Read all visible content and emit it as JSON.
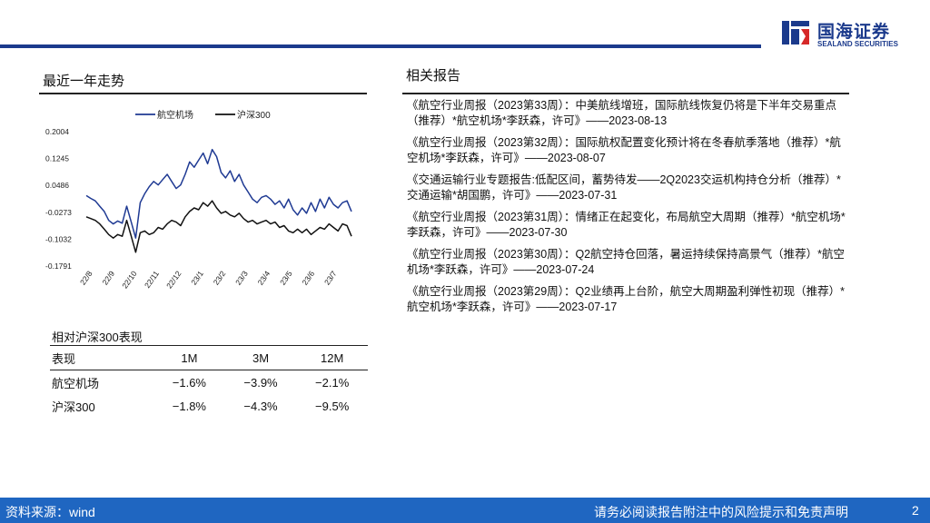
{
  "brand": {
    "name_cn": "国海证券",
    "name_en": "SEALAND SECURITIES"
  },
  "left": {
    "chart_title": "最近一年走势"
  },
  "right": {
    "section_title": "相关报告",
    "reports": [
      "《航空行业周报（2023第33周）：中美航线增班，国际航线恢复仍将是下半年交易重点（推荐）*航空机场*李跃森，许可》——2023-08-13",
      "《航空行业周报（2023第32周）：国际航权配置变化预计将在冬春航季落地（推荐）*航空机场*李跃森，许可》——2023-08-07",
      "《交通运输行业专题报告:低配区间，蓄势待发——2Q2023交运机构持仓分析（推荐）*交通运输*胡国鹏，许可》——2023-07-31",
      "《航空行业周报（2023第31周）：情绪正在起变化，布局航空大周期（推荐）*航空机场*李跃森，许可》——2023-07-30",
      "《航空行业周报（2023第30周）：Q2航空持仓回落，暑运持续保持高景气（推荐）*航空机场*李跃森，许可》——2023-07-24",
      "《航空行业周报（2023第29周）：Q2业绩再上台阶，航空大周期盈利弹性初现（推荐）*航空机场*李跃森，许可》——2023-07-17"
    ]
  },
  "perf_table": {
    "title": "相对沪深300表现",
    "headers": [
      "表现",
      "1M",
      "3M",
      "12M"
    ],
    "rows": [
      [
        "航空机场",
        "−1.6%",
        "−3.9%",
        "−2.1%"
      ],
      [
        "沪深300",
        "−1.8%",
        "−4.3%",
        "−9.5%"
      ]
    ]
  },
  "footer": {
    "source": "资料来源：wind",
    "disclaimer": "请务必阅读报告附注中的风险提示和免责声明",
    "page": "2"
  },
  "chart_data": {
    "type": "line",
    "x_labels": [
      "22/8",
      "22/9",
      "22/10",
      "22/11",
      "22/12",
      "23/1",
      "23/2",
      "23/3",
      "23/4",
      "23/5",
      "23/6",
      "23/7"
    ],
    "yticks": [
      "0.2004",
      "0.1245",
      "0.0486",
      "-0.0273",
      "-0.1032",
      "-0.1791"
    ],
    "ylim": [
      -0.1791,
      0.2004
    ],
    "legend_position": "top",
    "grid": false,
    "series": [
      {
        "name": "航空机场",
        "color": "#1f3a93",
        "values": [
          0.02,
          0.012,
          0.005,
          -0.01,
          -0.025,
          -0.05,
          -0.06,
          -0.052,
          -0.058,
          -0.01,
          -0.055,
          -0.1,
          0.0,
          0.025,
          0.045,
          0.06,
          0.05,
          0.065,
          0.08,
          0.06,
          0.04,
          0.05,
          0.08,
          0.115,
          0.1,
          0.12,
          0.14,
          0.11,
          0.15,
          0.13,
          0.085,
          0.07,
          0.09,
          0.06,
          0.08,
          0.05,
          0.03,
          0.01,
          0.0,
          0.015,
          0.02,
          0.01,
          -0.005,
          0.005,
          -0.015,
          0.01,
          -0.02,
          -0.035,
          -0.015,
          -0.03,
          0.0,
          -0.025,
          0.01,
          -0.015,
          0.015,
          -0.005,
          -0.015,
          0.0,
          0.005,
          -0.025
        ]
      },
      {
        "name": "沪深300",
        "color": "#111111",
        "values": [
          -0.04,
          -0.045,
          -0.05,
          -0.06,
          -0.075,
          -0.09,
          -0.1,
          -0.09,
          -0.095,
          -0.05,
          -0.095,
          -0.14,
          -0.085,
          -0.08,
          -0.09,
          -0.085,
          -0.07,
          -0.075,
          -0.06,
          -0.05,
          -0.055,
          -0.065,
          -0.04,
          -0.025,
          -0.015,
          -0.02,
          0.0,
          -0.01,
          0.005,
          -0.015,
          -0.03,
          -0.025,
          -0.035,
          -0.04,
          -0.03,
          -0.045,
          -0.055,
          -0.05,
          -0.06,
          -0.055,
          -0.05,
          -0.06,
          -0.055,
          -0.07,
          -0.065,
          -0.08,
          -0.085,
          -0.075,
          -0.085,
          -0.075,
          -0.09,
          -0.08,
          -0.07,
          -0.075,
          -0.06,
          -0.07,
          -0.08,
          -0.06,
          -0.065,
          -0.095
        ]
      }
    ]
  }
}
